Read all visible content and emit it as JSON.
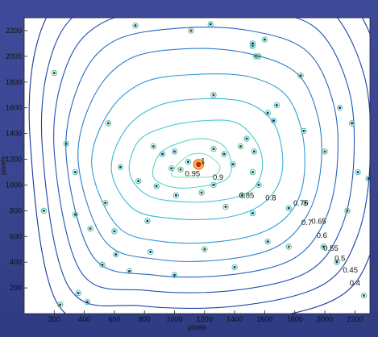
{
  "chart_data": {
    "type": "contour",
    "xlabel": "pixels",
    "ylabel": "pixels",
    "xlim": [
      0,
      2300
    ],
    "ylim": [
      0,
      2300
    ],
    "x_ticks": [
      200,
      400,
      600,
      800,
      1000,
      1200,
      1400,
      1600,
      1800,
      2000,
      2200
    ],
    "y_ticks": [
      200,
      400,
      600,
      800,
      1000,
      1200,
      1400,
      1600,
      1800,
      2000,
      2200
    ],
    "grid": false,
    "peak": {
      "x": 1160,
      "y": 1160
    },
    "contour_labels": [
      {
        "text": "1",
        "x": 1190,
        "y": 1170
      },
      {
        "text": "0.95",
        "x": 1120,
        "y": 1070
      },
      {
        "text": "0.9",
        "x": 1290,
        "y": 1040
      },
      {
        "text": "0.85",
        "x": 1480,
        "y": 900
      },
      {
        "text": "0.8",
        "x": 1640,
        "y": 880
      },
      {
        "text": "0.75",
        "x": 1840,
        "y": 840
      },
      {
        "text": "0.7",
        "x": 1880,
        "y": 690
      },
      {
        "text": "0.65",
        "x": 1960,
        "y": 700
      },
      {
        "text": "0.6",
        "x": 1980,
        "y": 590
      },
      {
        "text": "0.55",
        "x": 2040,
        "y": 490
      },
      {
        "text": "0.5",
        "x": 2100,
        "y": 410
      },
      {
        "text": "0.45",
        "x": 2170,
        "y": 320
      },
      {
        "text": "0.4",
        "x": 2200,
        "y": 220
      }
    ],
    "contours": [
      {
        "level": 0.95,
        "color": "#7ee2b4",
        "points": [
          [
            980,
            1080
          ],
          [
            1080,
            1220
          ],
          [
            1200,
            1240
          ],
          [
            1300,
            1150
          ],
          [
            1260,
            1070
          ],
          [
            1100,
            1060
          ]
        ]
      },
      {
        "level": 0.9,
        "color": "#5ad6c4",
        "points": [
          [
            860,
            1060
          ],
          [
            900,
            1240
          ],
          [
            1040,
            1330
          ],
          [
            1200,
            1360
          ],
          [
            1330,
            1300
          ],
          [
            1380,
            1150
          ],
          [
            1340,
            1040
          ],
          [
            1190,
            990
          ],
          [
            1000,
            980
          ]
        ]
      },
      {
        "level": 0.85,
        "color": "#45c8d2",
        "points": [
          [
            700,
            1100
          ],
          [
            760,
            1340
          ],
          [
            940,
            1450
          ],
          [
            1200,
            1500
          ],
          [
            1420,
            1480
          ],
          [
            1560,
            1300
          ],
          [
            1580,
            1100
          ],
          [
            1500,
            950
          ],
          [
            1300,
            880
          ],
          [
            1050,
            870
          ],
          [
            820,
            920
          ]
        ]
      },
      {
        "level": 0.8,
        "color": "#3ab4d8",
        "points": [
          [
            580,
            1120
          ],
          [
            680,
            1440
          ],
          [
            900,
            1620
          ],
          [
            1200,
            1670
          ],
          [
            1480,
            1640
          ],
          [
            1660,
            1480
          ],
          [
            1720,
            1200
          ],
          [
            1680,
            980
          ],
          [
            1540,
            820
          ],
          [
            1300,
            740
          ],
          [
            980,
            740
          ],
          [
            720,
            820
          ]
        ]
      },
      {
        "level": 0.75,
        "color": "#3298d4",
        "points": [
          [
            450,
            1150
          ],
          [
            560,
            1560
          ],
          [
            800,
            1800
          ],
          [
            1160,
            1860
          ],
          [
            1500,
            1840
          ],
          [
            1740,
            1700
          ],
          [
            1850,
            1400
          ],
          [
            1860,
            1050
          ],
          [
            1780,
            800
          ],
          [
            1600,
            640
          ],
          [
            1300,
            560
          ],
          [
            920,
            560
          ],
          [
            620,
            680
          ]
        ]
      },
      {
        "level": 0.7,
        "color": "#2a7ecb",
        "points": [
          [
            360,
            1180
          ],
          [
            460,
            1680
          ],
          [
            700,
            1980
          ],
          [
            1100,
            2060
          ],
          [
            1500,
            2020
          ],
          [
            1820,
            1860
          ],
          [
            1960,
            1500
          ],
          [
            1970,
            1100
          ],
          [
            1880,
            760
          ],
          [
            1680,
            520
          ],
          [
            1330,
            420
          ],
          [
            900,
            420
          ],
          [
            540,
            560
          ]
        ]
      },
      {
        "level": 0.65,
        "color": "#2466c0",
        "points": [
          [
            280,
            1220
          ],
          [
            370,
            1800
          ],
          [
            600,
            2120
          ],
          [
            1040,
            2220
          ],
          [
            1500,
            2200
          ],
          [
            1880,
            2040
          ],
          [
            2060,
            1620
          ],
          [
            2080,
            1120
          ],
          [
            1990,
            700
          ],
          [
            1780,
            420
          ],
          [
            1360,
            300
          ],
          [
            860,
            300
          ],
          [
            460,
            440
          ]
        ]
      },
      {
        "level": 0.6,
        "color": "#1f52b4",
        "points": [
          [
            200,
            1260
          ],
          [
            280,
            1920
          ],
          [
            520,
            2260
          ],
          [
            1000,
            2380
          ],
          [
            1520,
            2360
          ],
          [
            1940,
            2220
          ],
          [
            2160,
            1740
          ],
          [
            2190,
            1140
          ],
          [
            2100,
            640
          ],
          [
            1880,
            320
          ],
          [
            1390,
            180
          ],
          [
            820,
            180
          ],
          [
            380,
            320
          ]
        ]
      },
      {
        "level": 0.55,
        "color": "#1b42a6",
        "points": [
          [
            120,
            1300
          ],
          [
            190,
            2040
          ],
          [
            440,
            2400
          ],
          [
            960,
            2520
          ],
          [
            1540,
            2520
          ],
          [
            2000,
            2400
          ],
          [
            2260,
            1860
          ],
          [
            2300,
            1160
          ],
          [
            2210,
            580
          ],
          [
            1980,
            220
          ],
          [
            1420,
            60
          ],
          [
            780,
            60
          ],
          [
            300,
            200
          ]
        ]
      },
      {
        "level": 0.5,
        "color": "#183698",
        "points": [
          [
            40,
            1340
          ],
          [
            100,
            2160
          ],
          [
            360,
            2540
          ],
          [
            920,
            2660
          ],
          [
            1560,
            2680
          ],
          [
            2060,
            2580
          ],
          [
            2360,
            1980
          ],
          [
            2410,
            1180
          ],
          [
            2320,
            520
          ],
          [
            2080,
            120
          ],
          [
            1450,
            -60
          ],
          [
            740,
            -60
          ],
          [
            220,
            80
          ]
        ]
      }
    ],
    "sources": [
      {
        "x": 860,
        "y": 1300
      },
      {
        "x": 920,
        "y": 1240
      },
      {
        "x": 1000,
        "y": 1260
      },
      {
        "x": 1040,
        "y": 1120
      },
      {
        "x": 1090,
        "y": 1180
      },
      {
        "x": 980,
        "y": 1130
      },
      {
        "x": 1260,
        "y": 1280
      },
      {
        "x": 1330,
        "y": 1240
      },
      {
        "x": 1390,
        "y": 1160
      },
      {
        "x": 1440,
        "y": 1300
      },
      {
        "x": 1480,
        "y": 1360
      },
      {
        "x": 1530,
        "y": 1260
      },
      {
        "x": 1520,
        "y": 1100
      },
      {
        "x": 1560,
        "y": 1000
      },
      {
        "x": 1260,
        "y": 1000
      },
      {
        "x": 1180,
        "y": 940
      },
      {
        "x": 880,
        "y": 990
      },
      {
        "x": 1010,
        "y": 920
      },
      {
        "x": 1340,
        "y": 830
      },
      {
        "x": 1520,
        "y": 780
      },
      {
        "x": 1760,
        "y": 820
      },
      {
        "x": 1870,
        "y": 860
      },
      {
        "x": 1620,
        "y": 1560
      },
      {
        "x": 1660,
        "y": 1500
      },
      {
        "x": 1260,
        "y": 1700
      },
      {
        "x": 1680,
        "y": 1620
      },
      {
        "x": 1560,
        "y": 2000
      },
      {
        "x": 1840,
        "y": 1850
      },
      {
        "x": 1860,
        "y": 1420
      },
      {
        "x": 1520,
        "y": 2080
      },
      {
        "x": 1540,
        "y": 2000
      },
      {
        "x": 1520,
        "y": 2100
      },
      {
        "x": 1600,
        "y": 2130
      },
      {
        "x": 1110,
        "y": 2200
      },
      {
        "x": 1240,
        "y": 2250
      },
      {
        "x": 740,
        "y": 2240
      },
      {
        "x": 560,
        "y": 1480
      },
      {
        "x": 340,
        "y": 1100
      },
      {
        "x": 280,
        "y": 1320
      },
      {
        "x": 200,
        "y": 1870
      },
      {
        "x": 130,
        "y": 800
      },
      {
        "x": 340,
        "y": 770
      },
      {
        "x": 440,
        "y": 660
      },
      {
        "x": 600,
        "y": 640
      },
      {
        "x": 610,
        "y": 460
      },
      {
        "x": 520,
        "y": 380
      },
      {
        "x": 840,
        "y": 480
      },
      {
        "x": 1000,
        "y": 300
      },
      {
        "x": 1200,
        "y": 500
      },
      {
        "x": 1400,
        "y": 360
      },
      {
        "x": 1620,
        "y": 560
      },
      {
        "x": 1760,
        "y": 520
      },
      {
        "x": 1990,
        "y": 520
      },
      {
        "x": 2080,
        "y": 400
      },
      {
        "x": 2150,
        "y": 800
      },
      {
        "x": 2220,
        "y": 1100
      },
      {
        "x": 2180,
        "y": 1480
      },
      {
        "x": 540,
        "y": 860
      },
      {
        "x": 760,
        "y": 1030
      },
      {
        "x": 640,
        "y": 1140
      },
      {
        "x": 2000,
        "y": 1260
      },
      {
        "x": 2100,
        "y": 1600
      },
      {
        "x": 360,
        "y": 160
      },
      {
        "x": 240,
        "y": 70
      },
      {
        "x": 420,
        "y": 90
      },
      {
        "x": 2290,
        "y": 1050
      },
      {
        "x": 2260,
        "y": 140
      },
      {
        "x": 700,
        "y": 330
      },
      {
        "x": 820,
        "y": 720
      },
      {
        "x": 1450,
        "y": 920
      }
    ]
  }
}
